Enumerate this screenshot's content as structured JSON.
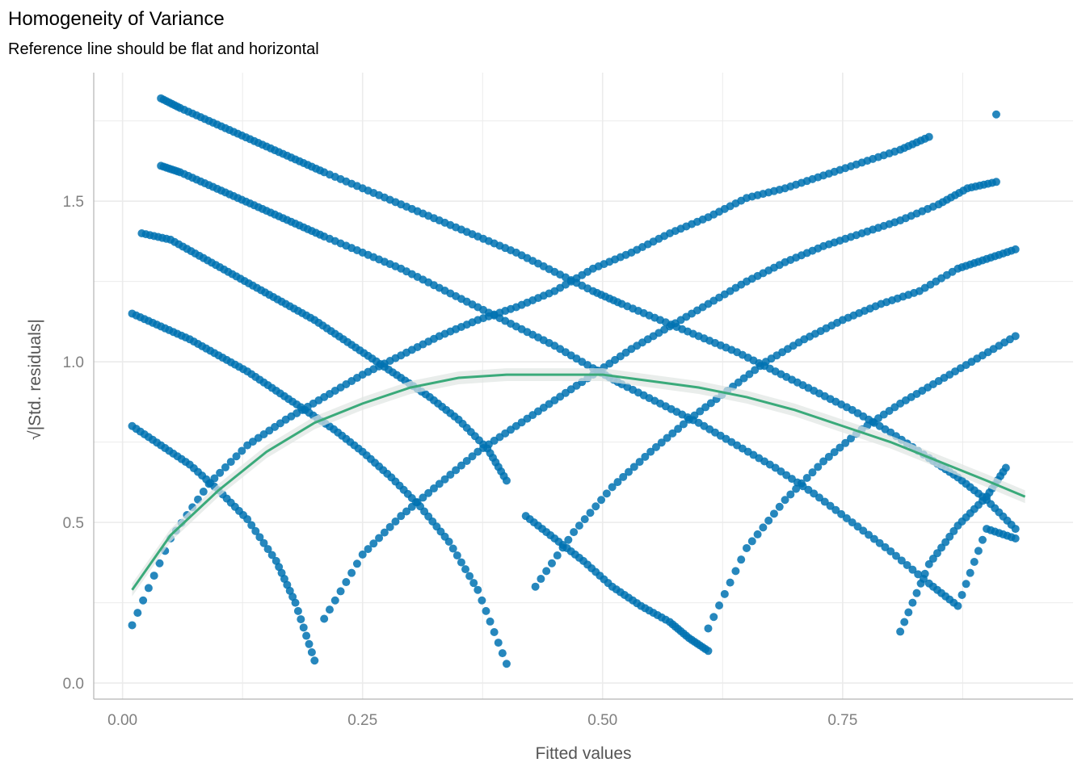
{
  "chart_data": {
    "type": "scatter",
    "title": "Homogeneity of Variance",
    "subtitle": "Reference line should be flat and horizontal",
    "xlabel": "Fitted values",
    "ylabel": "√|Std. residuals|",
    "xlim": [
      -0.03,
      0.99
    ],
    "ylim": [
      -0.05,
      1.9
    ],
    "x_ticks": [
      "0.00",
      "0.25",
      "0.50",
      "0.75"
    ],
    "y_ticks": [
      "0.0",
      "0.5",
      "1.0",
      "1.5"
    ],
    "grid": true,
    "point_color": "#0072B2",
    "line_color": "#3AAA7A",
    "band_color": "#E0E6E3",
    "series": [
      {
        "kind": "points",
        "x": [
          0.04,
          0.06,
          0.09,
          0.12,
          0.15,
          0.18,
          0.21,
          0.25,
          0.29,
          0.33,
          0.37,
          0.41,
          0.45,
          0.49,
          0.52,
          0.56,
          0.6,
          0.64,
          0.68,
          0.72,
          0.76,
          0.8,
          0.84,
          0.87,
          0.9,
          0.93
        ],
        "y": [
          1.82,
          1.79,
          1.75,
          1.71,
          1.67,
          1.63,
          1.59,
          1.54,
          1.49,
          1.44,
          1.39,
          1.34,
          1.28,
          1.22,
          1.18,
          1.13,
          1.08,
          1.03,
          0.97,
          0.91,
          0.85,
          0.78,
          0.7,
          0.64,
          0.57,
          0.48
        ]
      },
      {
        "kind": "points",
        "x": [
          0.04,
          0.06,
          0.09,
          0.12,
          0.15,
          0.18,
          0.21,
          0.25,
          0.29,
          0.33,
          0.37,
          0.41,
          0.45,
          0.49,
          0.52,
          0.56,
          0.6,
          0.64,
          0.68,
          0.72,
          0.76,
          0.8,
          0.84,
          0.87,
          0.9,
          0.93
        ],
        "y": [
          1.61,
          1.59,
          1.55,
          1.51,
          1.47,
          1.43,
          1.39,
          1.34,
          1.29,
          1.23,
          1.17,
          1.11,
          1.05,
          0.98,
          0.93,
          0.87,
          0.81,
          0.74,
          0.67,
          0.59,
          0.5,
          0.41,
          0.31,
          0.24,
          0.48,
          0.45
        ]
      },
      {
        "kind": "points",
        "x": [
          0.02,
          0.05,
          0.08,
          0.11,
          0.14,
          0.17,
          0.2,
          0.23,
          0.26,
          0.29,
          0.32,
          0.35,
          0.38,
          0.4
        ],
        "y": [
          1.4,
          1.38,
          1.33,
          1.28,
          1.23,
          1.18,
          1.13,
          1.07,
          1.01,
          0.95,
          0.89,
          0.82,
          0.73,
          0.63
        ]
      },
      {
        "kind": "points",
        "x": [
          0.42,
          0.45,
          0.48,
          0.51,
          0.54,
          0.57,
          0.59,
          0.61
        ],
        "y": [
          0.52,
          0.45,
          0.38,
          0.3,
          0.24,
          0.19,
          0.14,
          0.1
        ]
      },
      {
        "kind": "points",
        "x": [
          0.01,
          0.04,
          0.07,
          0.1,
          0.13,
          0.16,
          0.19,
          0.22,
          0.25,
          0.28,
          0.31,
          0.34,
          0.37,
          0.4
        ],
        "y": [
          1.15,
          1.11,
          1.07,
          1.02,
          0.97,
          0.91,
          0.85,
          0.79,
          0.72,
          0.64,
          0.55,
          0.44,
          0.29,
          0.06
        ]
      },
      {
        "kind": "points",
        "x": [
          0.01,
          0.04,
          0.07,
          0.1,
          0.13,
          0.16,
          0.18,
          0.2
        ],
        "y": [
          0.8,
          0.74,
          0.68,
          0.6,
          0.51,
          0.38,
          0.25,
          0.07
        ]
      },
      {
        "kind": "points",
        "x": [
          0.01,
          0.05,
          0.09,
          0.13,
          0.17,
          0.21,
          0.25,
          0.29,
          0.33,
          0.37,
          0.41,
          0.45,
          0.49,
          0.53,
          0.57,
          0.61,
          0.65,
          0.69,
          0.73,
          0.77,
          0.81,
          0.84
        ],
        "y": [
          0.18,
          0.45,
          0.62,
          0.74,
          0.82,
          0.89,
          0.96,
          1.02,
          1.08,
          1.13,
          1.17,
          1.22,
          1.29,
          1.34,
          1.4,
          1.45,
          1.51,
          1.54,
          1.58,
          1.62,
          1.66,
          1.7
        ]
      },
      {
        "kind": "points",
        "x": [
          0.21,
          0.25,
          0.29,
          0.33,
          0.37,
          0.41,
          0.45,
          0.49,
          0.53,
          0.57,
          0.61,
          0.65,
          0.69,
          0.73,
          0.77,
          0.81,
          0.85,
          0.88,
          0.91
        ],
        "y": [
          0.2,
          0.4,
          0.52,
          0.62,
          0.72,
          0.8,
          0.88,
          0.96,
          1.04,
          1.11,
          1.18,
          1.25,
          1.31,
          1.36,
          1.4,
          1.44,
          1.49,
          1.54,
          1.56
        ]
      },
      {
        "kind": "points",
        "x": [
          0.43,
          0.47,
          0.51,
          0.55,
          0.59,
          0.63,
          0.67,
          0.71,
          0.75,
          0.79,
          0.83,
          0.87,
          0.9,
          0.93
        ],
        "y": [
          0.3,
          0.47,
          0.61,
          0.72,
          0.82,
          0.91,
          1.0,
          1.07,
          1.13,
          1.18,
          1.22,
          1.29,
          1.32,
          1.35
        ]
      },
      {
        "kind": "points",
        "x": [
          0.61,
          0.65,
          0.69,
          0.73,
          0.77,
          0.81,
          0.85,
          0.89,
          0.93
        ],
        "y": [
          0.17,
          0.42,
          0.57,
          0.69,
          0.79,
          0.87,
          0.94,
          1.01,
          1.08
        ]
      },
      {
        "kind": "points",
        "x": [
          0.81,
          0.84,
          0.87,
          0.9,
          0.92
        ],
        "y": [
          0.16,
          0.37,
          0.49,
          0.58,
          0.67
        ]
      },
      {
        "kind": "points",
        "x": [
          0.91
        ],
        "y": [
          1.77
        ]
      },
      {
        "kind": "smooth",
        "x": [
          0.01,
          0.05,
          0.1,
          0.15,
          0.2,
          0.25,
          0.3,
          0.35,
          0.4,
          0.45,
          0.5,
          0.55,
          0.6,
          0.65,
          0.7,
          0.75,
          0.8,
          0.85,
          0.9,
          0.94
        ],
        "y": [
          0.29,
          0.46,
          0.6,
          0.72,
          0.81,
          0.87,
          0.92,
          0.95,
          0.96,
          0.96,
          0.96,
          0.94,
          0.92,
          0.89,
          0.85,
          0.8,
          0.75,
          0.69,
          0.63,
          0.58
        ]
      }
    ]
  }
}
